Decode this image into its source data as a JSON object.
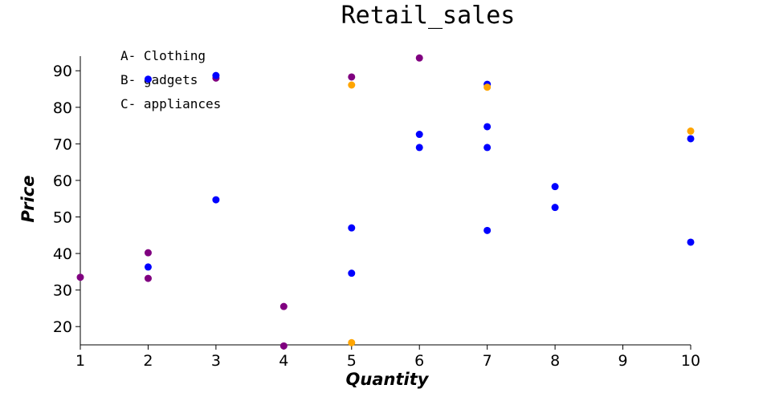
{
  "chart_data": {
    "type": "scatter",
    "title": "Retail_sales",
    "xlabel": "Quantity",
    "ylabel": "Price",
    "xlim": [
      1,
      10
    ],
    "ylim": [
      15,
      94
    ],
    "xticks": [
      1,
      2,
      3,
      4,
      5,
      6,
      7,
      8,
      9,
      10
    ],
    "yticks": [
      20,
      30,
      40,
      50,
      60,
      70,
      80,
      90
    ],
    "grid": false,
    "notes": [
      "A- Clothing",
      "B- gadgets",
      "C- appliances"
    ],
    "colors": {
      "purple": "#800080",
      "blue": "#0000ff",
      "orange": "#ffa500"
    },
    "points": [
      {
        "x": 1,
        "y": 33.5,
        "color": "purple"
      },
      {
        "x": 2,
        "y": 40.2,
        "color": "purple"
      },
      {
        "x": 2,
        "y": 33.2,
        "color": "purple"
      },
      {
        "x": 2,
        "y": 36.3,
        "color": "blue"
      },
      {
        "x": 2,
        "y": 87.7,
        "color": "blue"
      },
      {
        "x": 3,
        "y": 88.0,
        "color": "purple"
      },
      {
        "x": 3,
        "y": 88.7,
        "color": "blue"
      },
      {
        "x": 3,
        "y": 54.7,
        "color": "blue"
      },
      {
        "x": 4,
        "y": 25.5,
        "color": "purple"
      },
      {
        "x": 4,
        "y": 14.7,
        "color": "purple"
      },
      {
        "x": 5,
        "y": 88.3,
        "color": "purple"
      },
      {
        "x": 5,
        "y": 86.1,
        "color": "orange"
      },
      {
        "x": 5,
        "y": 47.0,
        "color": "blue"
      },
      {
        "x": 5,
        "y": 34.6,
        "color": "blue"
      },
      {
        "x": 5,
        "y": 15.6,
        "color": "orange"
      },
      {
        "x": 6,
        "y": 93.5,
        "color": "purple"
      },
      {
        "x": 6,
        "y": 72.6,
        "color": "blue"
      },
      {
        "x": 6,
        "y": 69.0,
        "color": "blue"
      },
      {
        "x": 7,
        "y": 86.3,
        "color": "blue"
      },
      {
        "x": 7,
        "y": 85.5,
        "color": "orange"
      },
      {
        "x": 7,
        "y": 74.7,
        "color": "blue"
      },
      {
        "x": 7,
        "y": 69.0,
        "color": "blue"
      },
      {
        "x": 7,
        "y": 46.3,
        "color": "blue"
      },
      {
        "x": 8,
        "y": 58.3,
        "color": "blue"
      },
      {
        "x": 8,
        "y": 52.6,
        "color": "blue"
      },
      {
        "x": 10,
        "y": 73.5,
        "color": "orange"
      },
      {
        "x": 10,
        "y": 71.4,
        "color": "blue"
      },
      {
        "x": 10,
        "y": 43.1,
        "color": "blue"
      }
    ]
  }
}
